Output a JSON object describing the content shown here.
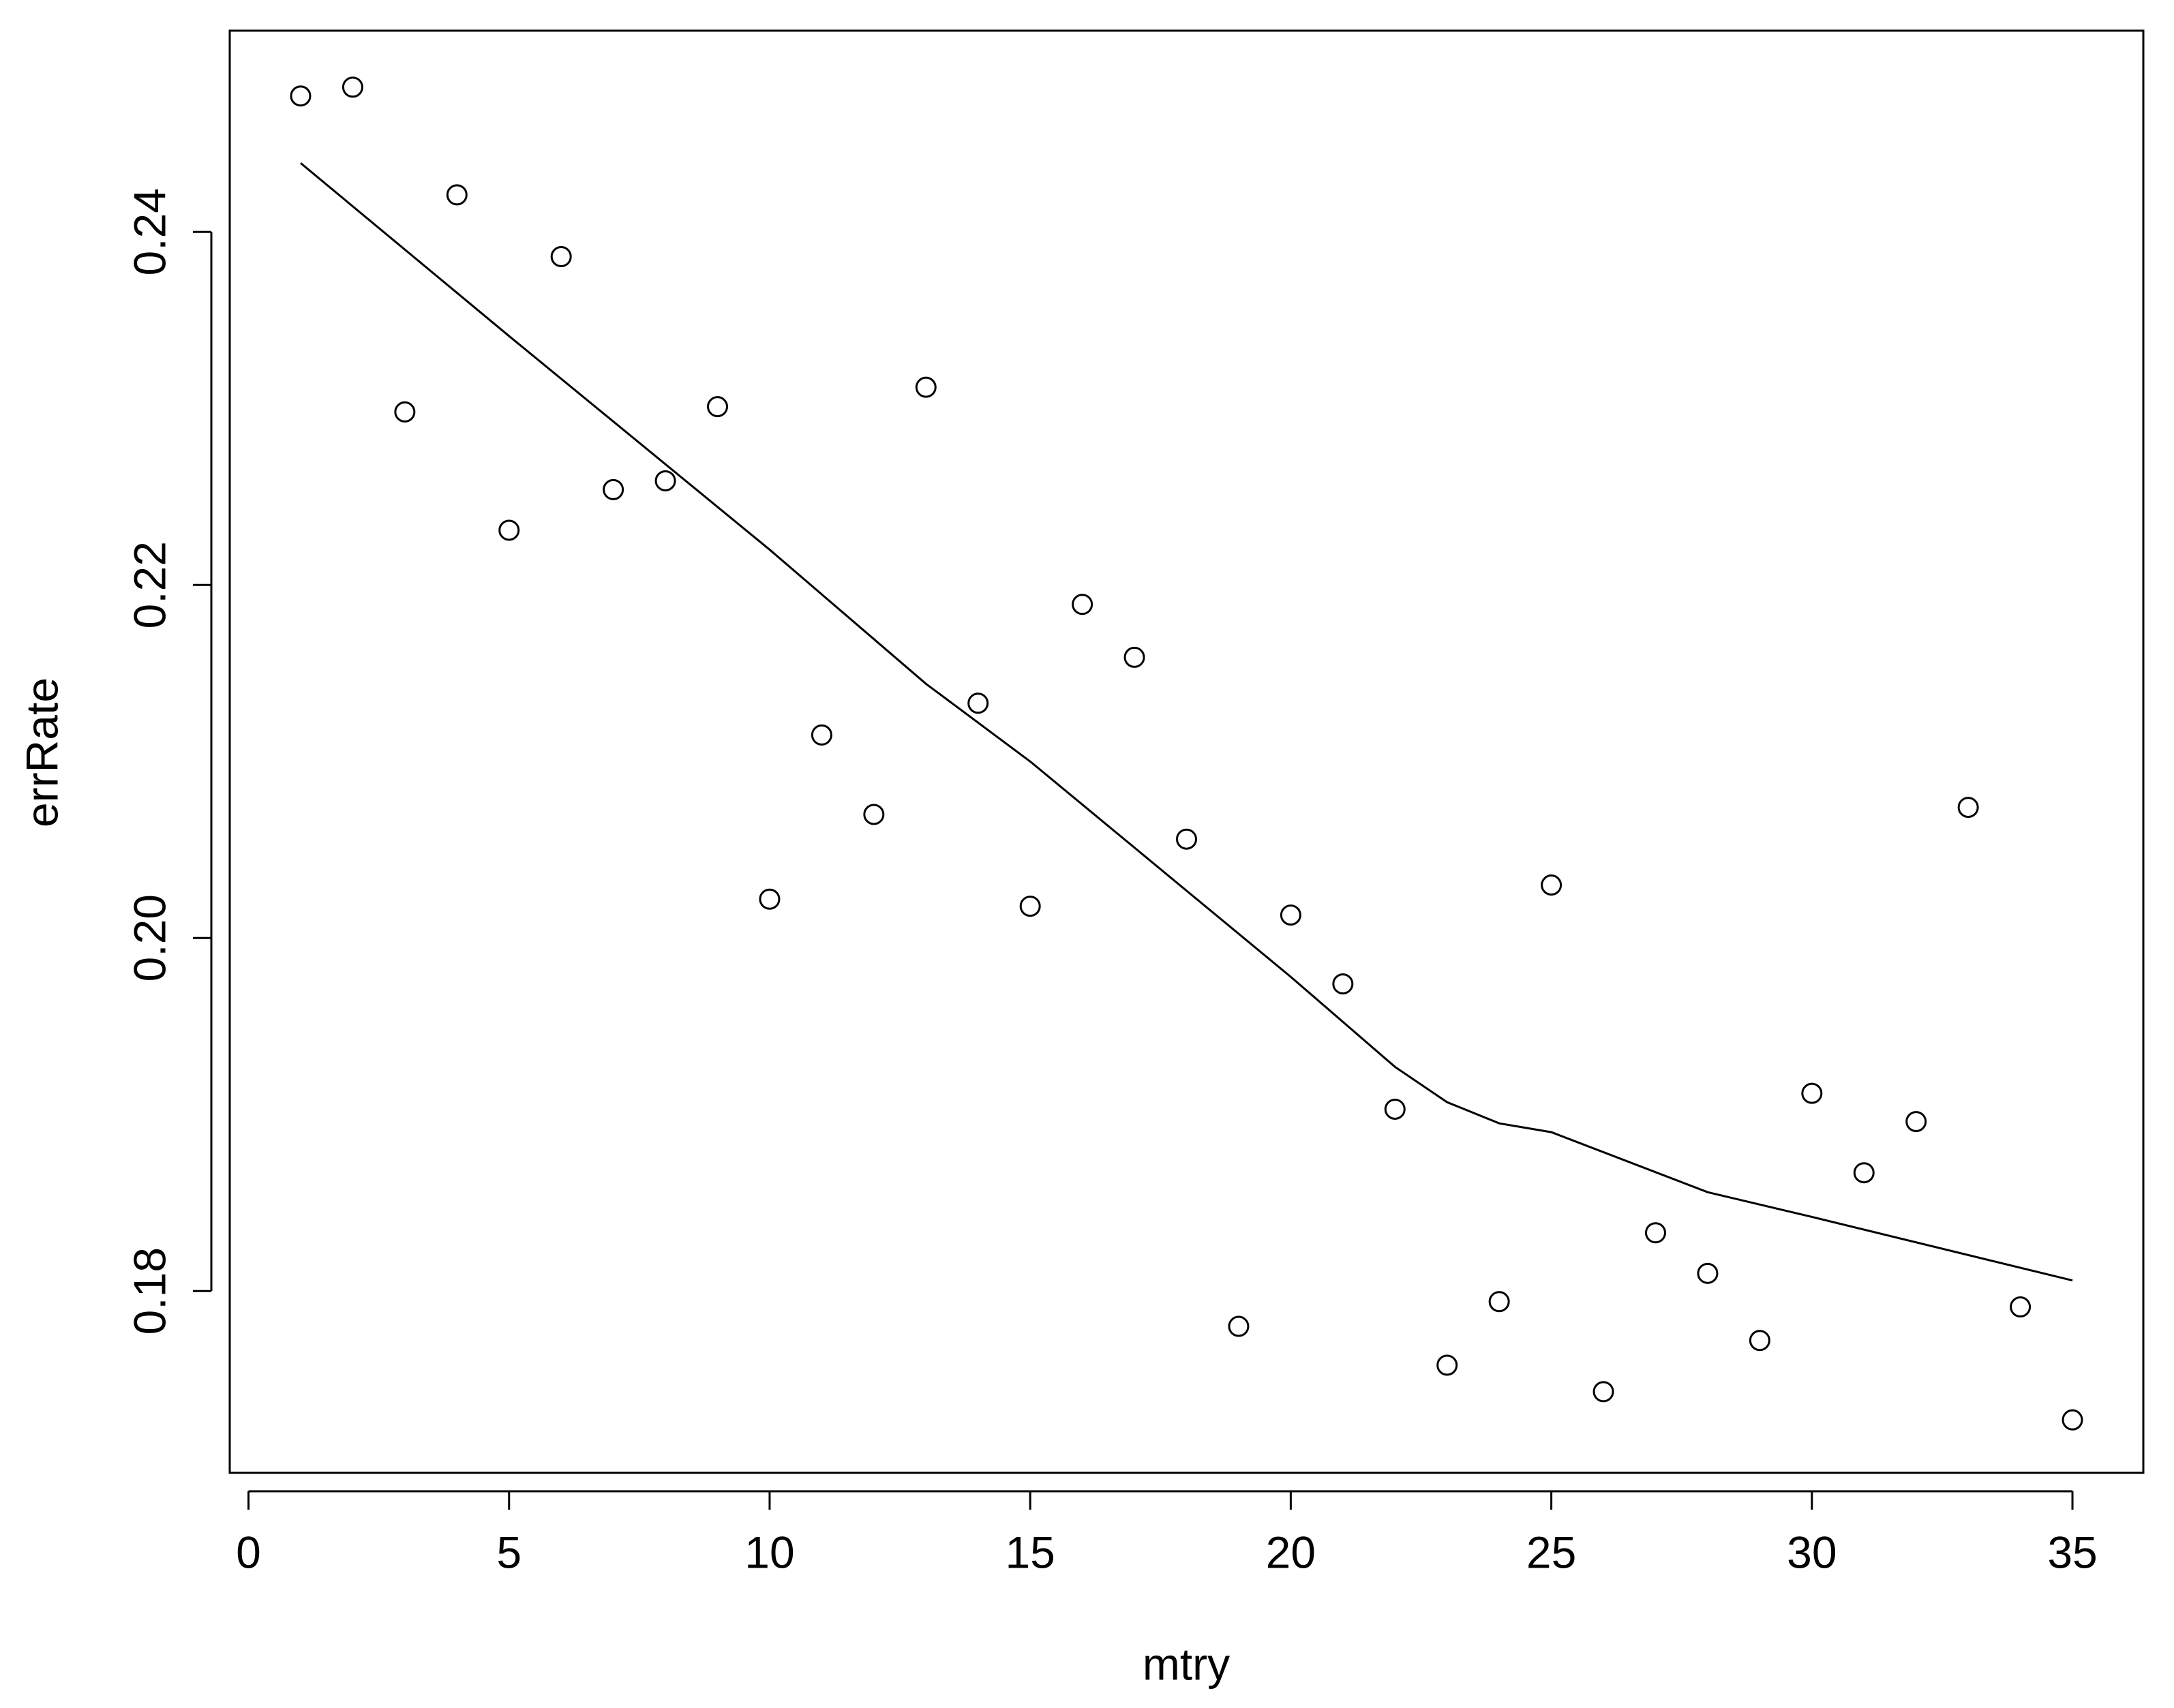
{
  "chart_data": {
    "type": "scatter",
    "x_label": "mtry",
    "y_label": "errRate",
    "x": [
      1,
      2,
      3,
      4,
      5,
      6,
      7,
      8,
      9,
      10,
      11,
      12,
      13,
      14,
      15,
      16,
      17,
      18,
      19,
      20,
      21,
      22,
      23,
      24,
      25,
      26,
      27,
      28,
      29,
      30,
      31,
      32,
      33,
      34,
      35
    ],
    "series": [
      {
        "type": "scatter",
        "color": "#000000",
        "values": [
          0.2477,
          0.2482,
          0.2298,
          0.2421,
          0.2231,
          0.2386,
          0.2254,
          0.2259,
          0.2301,
          0.2022,
          0.2115,
          0.207,
          0.2312,
          0.2133,
          0.2018,
          0.2189,
          0.2159,
          0.2056,
          0.178,
          0.2013,
          0.1974,
          0.1903,
          0.1758,
          0.1794,
          0.203,
          0.1743,
          0.1833,
          0.181,
          0.1772,
          0.1912,
          0.1867,
          0.1896,
          0.2074,
          0.1791,
          0.1727
        ]
      },
      {
        "type": "line",
        "color": "#000000",
        "x": [
          1,
          5,
          10,
          13,
          15,
          20,
          22,
          23,
          24,
          25,
          28,
          30,
          35
        ],
        "values": [
          0.2439,
          0.2341,
          0.222,
          0.2144,
          0.21,
          0.1978,
          0.1927,
          0.1907,
          0.1895,
          0.189,
          0.1856,
          0.1842,
          0.1806
        ]
      }
    ],
    "xlim": [
      -0.36,
      36.36
    ],
    "ylim": [
      0.1697,
      0.2514
    ],
    "xticks": [
      0,
      5,
      10,
      15,
      20,
      25,
      30,
      35
    ],
    "yticks": [
      0.18,
      {
        "value": 0.2,
        "label": "0.20"
      },
      0.22,
      0.24
    ]
  }
}
